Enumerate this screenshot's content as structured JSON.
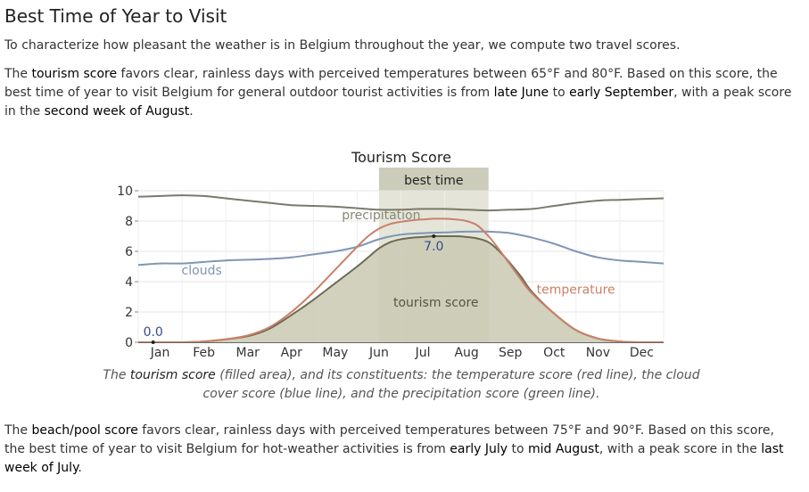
{
  "section": {
    "title": "Best Time of Year to Visit",
    "intro": "To characterize how pleasant the weather is in Belgium throughout the year, we compute two travel scores."
  },
  "tourism_paragraph": {
    "t1": "The ",
    "b1": "tourism score",
    "t2": " favors clear, rainless days with perceived temperatures between 65°F and 80°F. Based on this score, the best time of year to visit Belgium for general outdoor tourist activities is from ",
    "b2": "late June",
    "t3": " to ",
    "b3": "early September",
    "t4": ", with a peak score in the ",
    "b4": "second week of August",
    "t5": "."
  },
  "caption": {
    "t1": "The ",
    "b1": "tourism score",
    "t2": " (filled area), and its constituents: the temperature score (red line), the cloud cover score (blue line), and the precipitation score (green line)."
  },
  "beach_paragraph": {
    "t1": "The ",
    "b1": "beach/pool score",
    "t2": " favors clear, rainless days with perceived temperatures between 75°F and 90°F. Based on this score, the best time of year to visit Belgium for hot-weather activities is from ",
    "b2": "early July",
    "t3": " to ",
    "b3": "mid August",
    "t4": ", with a peak score in the ",
    "b4": "last week of July",
    "t5": "."
  },
  "chart_data": {
    "type": "area",
    "title": "Tourism Score",
    "best_time_label": "best time",
    "x_unit": "month",
    "xlim": [
      0,
      12
    ],
    "ylim": [
      0,
      10
    ],
    "yticks": [
      "0",
      "2",
      "4",
      "6",
      "8",
      "10"
    ],
    "months": [
      "Jan",
      "Feb",
      "Mar",
      "Apr",
      "May",
      "Jun",
      "Jul",
      "Aug",
      "Sep",
      "Oct",
      "Nov",
      "Dec"
    ],
    "best_time_range": [
      5.5,
      8.0
    ],
    "grid": true,
    "colors": {
      "tourism_fill": "#c9c9b3",
      "tourism_line": "#6b6b55",
      "temperature": "#c98068",
      "clouds": "#7f96b3",
      "precipitation": "#7a7a6a",
      "best_band": "#d8d8c8",
      "best_label_bg": "#c4c4b0"
    },
    "series": [
      {
        "name": "tourism score",
        "label": "tourism score",
        "x": [
          0,
          0.5,
          1,
          1.5,
          2,
          2.5,
          3,
          3.5,
          4,
          4.5,
          5,
          5.25,
          5.5,
          5.75,
          6,
          6.25,
          6.5,
          6.75,
          7,
          7.25,
          7.5,
          7.75,
          8,
          8.25,
          8.5,
          8.75,
          9,
          9.5,
          10,
          10.5,
          11,
          11.5,
          12
        ],
        "values": [
          0,
          0,
          0,
          0.05,
          0.2,
          0.4,
          0.9,
          1.8,
          2.8,
          3.9,
          5.0,
          5.6,
          6.2,
          6.6,
          6.8,
          6.9,
          6.95,
          7.0,
          7.0,
          7.0,
          6.95,
          6.85,
          6.6,
          6.0,
          5.2,
          4.3,
          3.3,
          1.9,
          0.8,
          0.25,
          0.05,
          0,
          0
        ]
      },
      {
        "name": "temperature",
        "label": "temperature",
        "x": [
          0,
          0.5,
          1,
          1.5,
          2,
          2.5,
          3,
          3.5,
          4,
          4.5,
          5,
          5.25,
          5.5,
          5.75,
          6,
          6.25,
          6.5,
          6.75,
          7,
          7.25,
          7.5,
          7.75,
          8,
          8.25,
          8.5,
          8.75,
          9,
          9.5,
          10,
          10.5,
          11,
          11.5,
          12
        ],
        "values": [
          0,
          0,
          0,
          0.05,
          0.2,
          0.45,
          1.0,
          2.0,
          3.3,
          4.8,
          6.3,
          7.0,
          7.5,
          7.8,
          7.95,
          8.05,
          8.1,
          8.15,
          8.15,
          8.1,
          8.0,
          7.7,
          7.0,
          6.1,
          5.1,
          4.1,
          3.2,
          1.9,
          0.8,
          0.25,
          0.05,
          0,
          0
        ]
      },
      {
        "name": "clouds",
        "label": "clouds",
        "x": [
          0,
          0.5,
          1,
          1.5,
          2,
          2.5,
          3,
          3.5,
          4,
          4.5,
          5,
          5.5,
          6,
          6.5,
          7,
          7.5,
          8,
          8.5,
          9,
          9.5,
          10,
          10.5,
          11,
          11.5,
          12
        ],
        "values": [
          5.1,
          5.2,
          5.2,
          5.3,
          5.4,
          5.45,
          5.5,
          5.6,
          5.8,
          6.0,
          6.3,
          6.8,
          7.1,
          7.2,
          7.25,
          7.3,
          7.3,
          7.2,
          6.9,
          6.5,
          6.0,
          5.6,
          5.4,
          5.3,
          5.2
        ]
      },
      {
        "name": "precipitation",
        "label": "precipitation",
        "x": [
          0,
          0.5,
          1,
          1.5,
          2,
          2.5,
          3,
          3.5,
          4,
          4.5,
          5,
          5.5,
          6,
          6.5,
          7,
          7.5,
          8,
          8.5,
          9,
          9.5,
          10,
          10.5,
          11,
          11.5,
          12
        ],
        "values": [
          9.6,
          9.65,
          9.7,
          9.65,
          9.5,
          9.35,
          9.2,
          9.05,
          9.0,
          8.95,
          8.85,
          8.75,
          8.75,
          8.8,
          8.8,
          8.75,
          8.7,
          8.75,
          8.8,
          9.0,
          9.2,
          9.35,
          9.4,
          9.45,
          9.5
        ]
      }
    ],
    "annotations": [
      {
        "text": "0.0",
        "x": 0.3,
        "y": 0
      },
      {
        "text": "7.0",
        "x": 6.75,
        "y": 7.0
      }
    ]
  }
}
